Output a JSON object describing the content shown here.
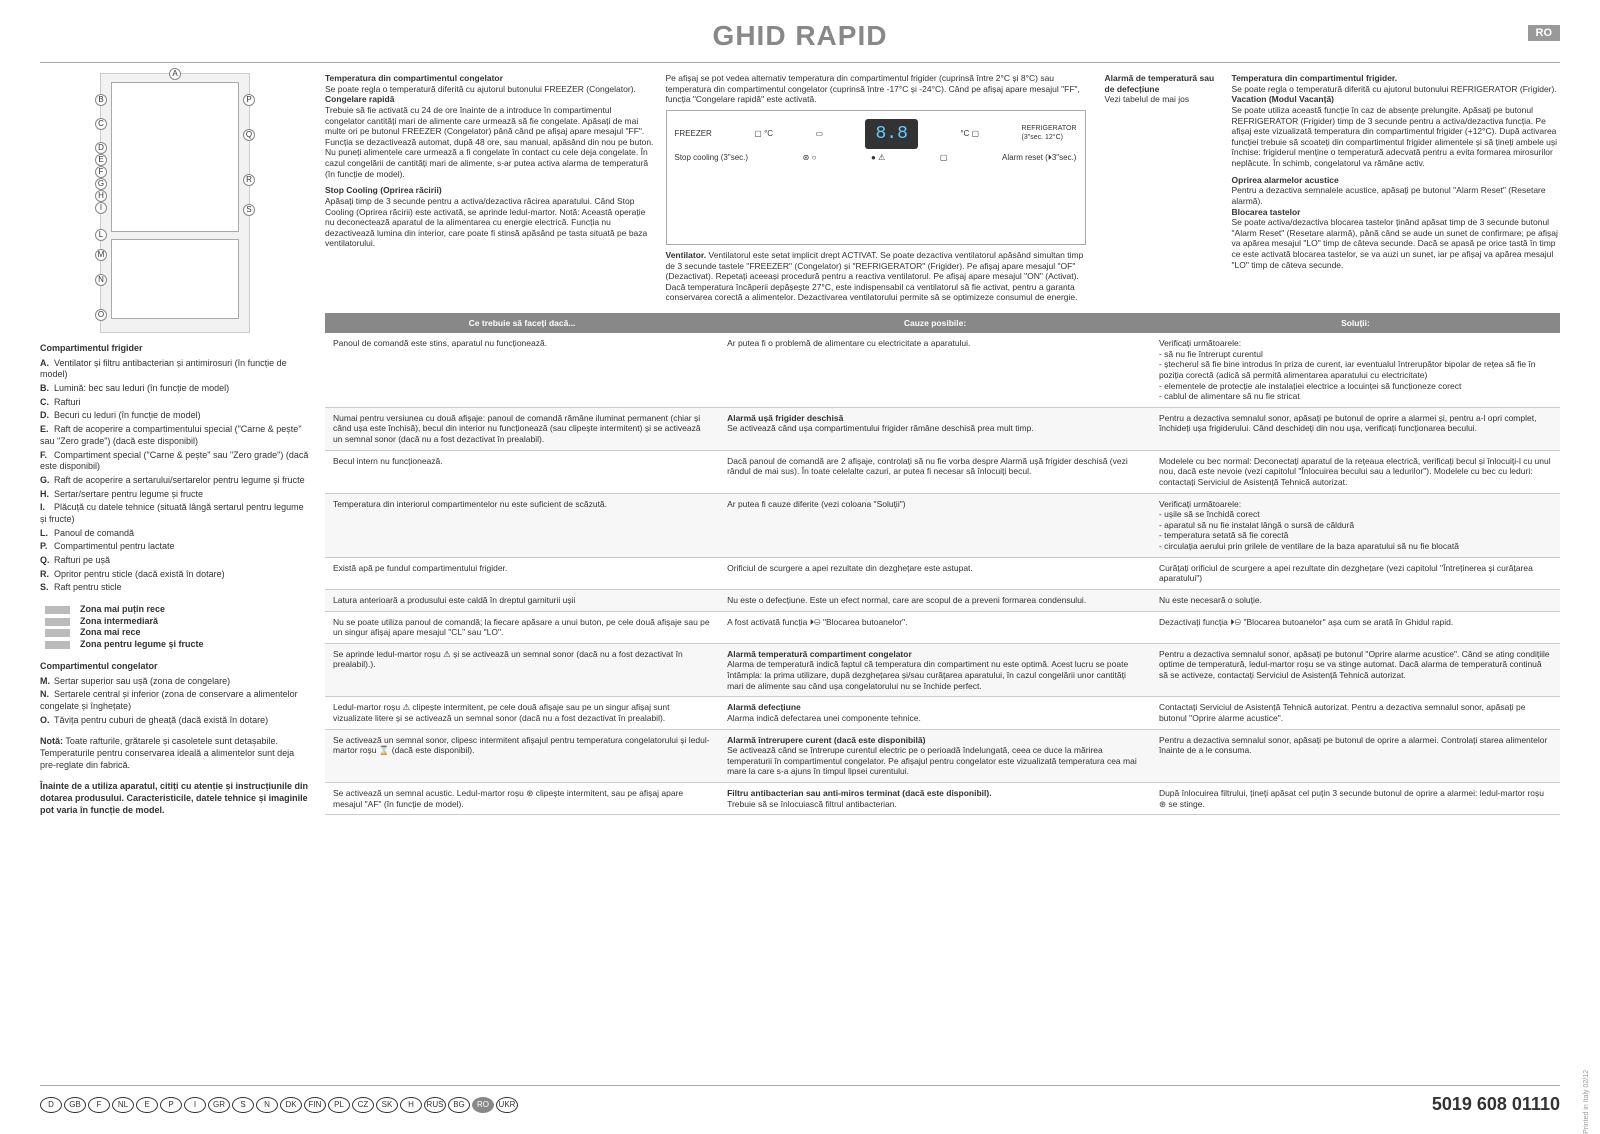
{
  "header": {
    "title": "GHID RAPID",
    "lang_badge": "RO"
  },
  "diagram_labels": [
    "A",
    "B",
    "C",
    "D",
    "E",
    "F",
    "G",
    "H",
    "I",
    "L",
    "M",
    "N",
    "O",
    "P",
    "Q",
    "R",
    "S"
  ],
  "left": {
    "section1_title": "Compartimentul frigider",
    "items_fridge": [
      {
        "l": "A.",
        "t": "Ventilator și filtru antibacterian și antimirosuri (în funcție de model)"
      },
      {
        "l": "B.",
        "t": "Lumină: bec sau leduri (în funcție de model)"
      },
      {
        "l": "C.",
        "t": "Rafturi"
      },
      {
        "l": "D.",
        "t": "Becuri cu leduri (în funcție de model)"
      },
      {
        "l": "E.",
        "t": "Raft de acoperire a compartimentului special (\"Carne & pește\" sau \"Zero grade\") (dacă este disponibil)"
      },
      {
        "l": "F.",
        "t": "Compartiment special (\"Carne & pește\" sau \"Zero grade\") (dacă este disponibil)"
      },
      {
        "l": "G.",
        "t": "Raft de acoperire a sertarului/sertarelor pentru legume și fructe"
      },
      {
        "l": "H.",
        "t": "Sertar/sertare pentru legume și fructe"
      },
      {
        "l": "I.",
        "t": "Plăcuță cu datele tehnice (situată lângă sertarul pentru legume și fructe)"
      },
      {
        "l": "L.",
        "t": "Panoul de comandă"
      },
      {
        "l": "P.",
        "t": "Compartimentul pentru lactate"
      },
      {
        "l": "Q.",
        "t": "Rafturi pe ușă"
      },
      {
        "l": "R.",
        "t": "Opritor pentru sticle (dacă există în dotare)"
      },
      {
        "l": "S.",
        "t": "Raft pentru sticle"
      }
    ],
    "zones": [
      "Zona mai puțin rece",
      "Zona intermediară",
      "Zona mai rece",
      "Zona pentru legume și fructe"
    ],
    "section2_title": "Compartimentul congelator",
    "items_freezer": [
      {
        "l": "M.",
        "t": "Sertar superior sau ușă (zona de congelare)"
      },
      {
        "l": "N.",
        "t": "Sertarele central și inferior (zona de conservare a alimentelor congelate și înghețate)"
      },
      {
        "l": "O.",
        "t": "Tăvița pentru cuburi de gheață (dacă există în dotare)"
      }
    ],
    "note_label": "Notă:",
    "note": "Toate rafturile, grătarele și casoletele sunt detașabile. Temperaturile pentru conservarea ideală a alimentelor sunt deja pre-reglate din fabrică.",
    "warning": "Înainte de a utiliza aparatul, citiți cu atenție și instrucțiunile din dotarea produsului. Caracteristicile, datele tehnice și imaginile pot varia în funcție de model."
  },
  "info": {
    "col1": {
      "h1": "Temperatura din compartimentul congelator",
      "t1": "Se poate regla o temperatură diferită cu ajutorul butonului FREEZER (Congelator).",
      "h2": "Congelare rapidă",
      "t2": "Trebuie să fie activată cu 24 de ore înainte de a introduce în compartimentul congelator cantități mari de alimente care urmează să fie congelate. Apăsați de mai multe ori pe butonul FREEZER (Congelator) până când pe afișaj apare mesajul \"FF\". Funcția se dezactivează automat, după 48 ore, sau manual, apăsând din nou pe buton. Nu puneți alimentele care urmează a fi congelate în contact cu cele deja congelate. În cazul congelării de cantități mari de alimente, s-ar putea activa alarma de temperatură (în funcție de model).",
      "h3": "Stop Cooling (Oprirea răcirii)",
      "t3": "Apăsați timp de 3 secunde pentru a activa/dezactiva răcirea aparatului. Când Stop Cooling (Oprirea răcirii) este activată, se aprinde ledul-martor. Notă: Această operație nu deconectează aparatul de la alimentarea cu energie electrică. Funcția nu dezactivează lumina din interior, care poate fi stinsă apăsând pe tasta situată pe baza ventilatorului."
    },
    "col2": {
      "t1": "Pe afișaj se pot vedea alternativ temperatura din compartimentul frigider (cuprinsă între 2°C și 8°C) sau temperatura din compartimentul congelator (cuprinsă între -17°C și -24°C). Când pe afișaj apare mesajul \"FF\", funcția \"Congelare rapidă\" este activată.",
      "panel": {
        "freezer_label": "FREEZER",
        "freezer_unit": "°C",
        "lcd": "8.8",
        "refrig_label": "REFRIGERATOR",
        "refrig_hint": "(3\"sec. 12°C)",
        "refrig_unit": "°C",
        "stop_label": "Stop cooling (3\"sec.)",
        "alarm_label": "Alarm reset (⏵3\"sec.)"
      },
      "vent_label": "Ventilator.",
      "vent": "Ventilatorul este setat implicit drept ACTIVAT. Se poate dezactiva ventilatorul apăsând simultan timp de 3 secunde tastele \"FREEZER\" (Congelator) și \"REFRIGERATOR\" (Frigider). Pe afișaj apare mesajul \"OF\" (Dezactivat). Repetați aceeași procedură pentru a reactiva ventilatorul. Pe afișaj apare mesajul \"ON\" (Activat). Dacă temperatura încăperii depășește 27°C, este indispensabil ca ventilatorul să fie activat, pentru a garanta conservarea corectă a alimentelor. Dezactivarea ventilatorului permite să se optimizeze consumul de energie."
    },
    "col3": {
      "h1": "Alarmă de temperatură sau de defecțiune",
      "t1": "Vezi tabelul de mai jos"
    },
    "col4": {
      "h1": "Temperatura din compartimentul frigider.",
      "t1": "Se poate regla o temperatură diferită cu ajutorul butonului REFRIGERATOR (Frigider).",
      "h2": "Vacation (Modul Vacanță)",
      "t2": "Se poate utiliza această funcție în caz de absențe prelungite. Apăsați pe butonul REFRIGERATOR (Frigider) timp de 3 secunde pentru a activa/dezactiva funcția. Pe afișaj este vizualizată temperatura din compartimentul frigider (+12°C). După activarea funcției trebuie să scoateți din compartimentul frigider alimentele și să țineți ambele uși închise: frigiderul menține o temperatură adecvată pentru a evita formarea mirosurilor neplăcute. În schimb, congelatorul va rămâne activ.",
      "h3": "Oprirea alarmelor acustice",
      "t3": "Pentru a dezactiva semnalele acustice, apăsați pe butonul \"Alarm Reset\" (Resetare alarmă).",
      "h4": "Blocarea tastelor",
      "t4": "Se poate activa/dezactiva blocarea tastelor ținând apăsat timp de 3 secunde butonul \"Alarm Reset\" (Resetare alarmă), până când se aude un sunet de confirmare; pe afișaj va apărea mesajul \"LO\" timp de câteva secunde. Dacă se apasă pe orice tastă în timp ce este activată blocarea tastelor, se va auzi un sunet, iar pe afișaj va apărea mesajul \"LO\" timp de câteva secunde."
    }
  },
  "table": {
    "headers": [
      "Ce trebuie să faceți dacă...",
      "Cauze posibile:",
      "Soluții:"
    ],
    "rows": [
      [
        "Panoul de comandă este stins, aparatul nu funcționează.",
        "Ar putea fi o problemă de alimentare cu electricitate a aparatului.",
        "Verificați următoarele:\n- să nu fie întrerupt curentul\n- ștecherul să fie bine introdus în priza de curent, iar eventualul întrerupător bipolar de rețea să fie în poziția corectă (adică să permită alimentarea aparatului cu electricitate)\n- elementele de protecție ale instalației electrice a locuinței să funcționeze corect\n- cablul de alimentare să nu fie stricat"
      ],
      [
        "Numai pentru versiunea cu două afișaje: panoul de comandă rămâne iluminat permanent (chiar și când ușa este închisă), becul din interior nu funcționează (sau clipește intermitent) și se activează un semnal sonor (dacă nu a fost dezactivat în prealabil).",
        "Alarmă ușă frigider deschisă\nSe activează când ușa compartimentului frigider rămâne deschisă prea mult timp.",
        "Pentru a dezactiva semnalul sonor, apăsați pe butonul de oprire a alarmei și, pentru a-l opri complet, închideți ușa frigiderului. Când deschideți din nou ușa, verificați funcționarea becului."
      ],
      [
        "Becul intern nu funcționează.",
        "Dacă panoul de comandă are 2 afișaje, controlați să nu fie vorba despre Alarmă ușă frigider deschisă (vezi rândul de mai sus). În toate celelalte cazuri, ar putea fi necesar să înlocuiți becul.",
        "Modelele cu bec normal: Deconectați aparatul de la rețeaua electrică, verificați becul și înlocuiți-l cu unul nou, dacă este nevoie (vezi capitolul \"Înlocuirea becului sau a ledurilor\"). Modelele cu bec cu leduri: contactați Serviciul de Asistență Tehnică autorizat."
      ],
      [
        "Temperatura din interiorul compartimentelor nu este suficient de scăzută.",
        "Ar putea fi cauze diferite (vezi coloana \"Soluții\")",
        "Verificați următoarele:\n- ușile să se închidă corect\n- aparatul să nu fie instalat lângă o sursă de căldură\n- temperatura setată să fie corectă\n- circulația aerului prin grilele de ventilare de la baza aparatului să nu fie blocată"
      ],
      [
        "Există apă pe fundul compartimentului frigider.",
        "Orificiul de scurgere a apei rezultate din dezghețare este astupat.",
        "Curățați orificiul de scurgere a apei rezultate din dezghețare (vezi capitolul \"Întreținerea și curățarea aparatului\")"
      ],
      [
        "Latura anterioară a produsului este caldă în dreptul garniturii ușii",
        "Nu este o defecțiune. Este un efect normal, care are scopul de a preveni formarea condensului.",
        "Nu este necesară o soluție."
      ],
      [
        "Nu se poate utiliza panoul de comandă; la fiecare apăsare a unui buton, pe cele două afișaje sau pe un singur afișaj apare mesajul \"CL\" sau \"LO\".",
        "A fost activată funcția ⏵⊖ \"Blocarea butoanelor\".",
        "Dezactivați funcția ⏵⊖ \"Blocarea butoanelor\" așa cum se arată în Ghidul rapid."
      ],
      [
        "Se aprinde ledul-martor roșu ⚠ și se activează un semnal sonor (dacă nu a fost dezactivat în prealabil).).",
        "Alarmă temperatură compartiment congelator\nAlarma de temperatură indică faptul că temperatura din compartiment nu este optimă. Acest lucru se poate întâmpla: la prima utilizare, după dezghețarea și/sau curățarea aparatului, în cazul congelării unor cantități mari de alimente sau când ușa congelatorului nu se închide perfect.",
        "Pentru a dezactiva semnalul sonor, apăsați pe butonul \"Oprire alarme acustice\". Când se ating condițiile optime de temperatură, ledul-martor roșu se va stinge automat. Dacă alarma de temperatură continuă să se activeze, contactați Serviciul de Asistență Tehnică autorizat."
      ],
      [
        "Ledul-martor roșu ⚠ clipește intermitent, pe cele două afișaje sau pe un singur afișaj sunt vizualizate litere și se activează un semnal sonor (dacă nu a fost dezactivat în prealabil).",
        "Alarmă defecțiune\nAlarma indică defectarea unei componente tehnice.",
        "Contactați Serviciul de Asistență Tehnică autorizat. Pentru a dezactiva semnalul sonor, apăsați pe butonul \"Oprire alarme acustice\"."
      ],
      [
        "Se activează un semnal sonor, clipesc intermitent afișajul pentru temperatura congelatorului și ledul-martor roșu ⌛ (dacă este disponibil).",
        "Alarmă întrerupere curent (dacă este disponibilă)\nSe activează când se întrerupe curentul electric pe o perioadă îndelungată, ceea ce duce la mărirea temperaturii în compartimentul congelator. Pe afișajul pentru congelator este vizualizată temperatura cea mai mare la care s-a ajuns în timpul lipsei curentului.",
        "Pentru a dezactiva semnalul sonor, apăsați pe butonul de oprire a alarmei. Controlați starea alimentelor înainte de a le consuma."
      ],
      [
        "Se activează un semnal acustic. Ledul-martor roșu ⊛ clipește intermitent, sau pe afișaj apare mesajul \"AF\" (în funcție de model).",
        "Filtru antibacterian sau anti-miros terminat (dacă este disponibil).\nTrebuie să se înlocuiască filtrul antibacterian.",
        "După înlocuirea filtrului, țineți apăsat cel puțin 3 secunde butonul de oprire a alarmei: ledul-martor roșu ⊛ se stinge."
      ]
    ]
  },
  "footer": {
    "langs": [
      "D",
      "GB",
      "F",
      "NL",
      "E",
      "P",
      "I",
      "GR",
      "S",
      "N",
      "DK",
      "FIN",
      "PL",
      "CZ",
      "SK",
      "H",
      "RUS",
      "BG",
      "RO",
      "UKR"
    ],
    "active_lang": "RO",
    "docnum": "5019 608 01110",
    "side": "Printed in Italy    02/12"
  }
}
